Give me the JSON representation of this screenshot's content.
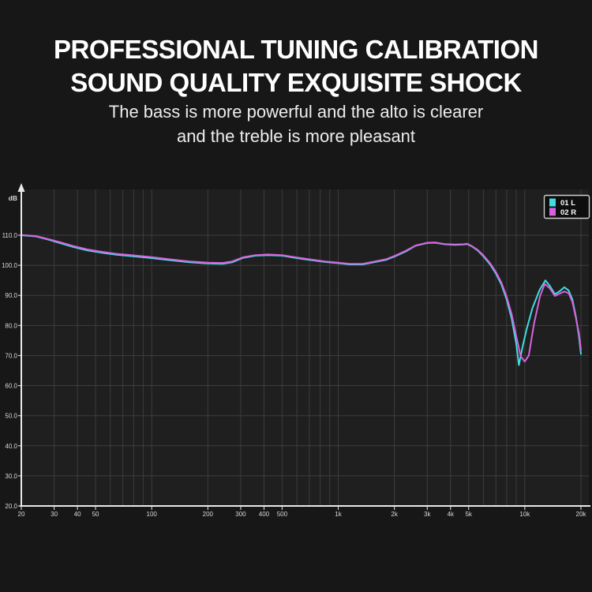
{
  "header": {
    "title_line1": "PROFESSIONAL TUNING CALIBRATION",
    "title_line2": "SOUND QUALITY EXQUISITE SHOCK",
    "subtitle_line1": "The bass is more powerful and the alto is clearer",
    "subtitle_line2": "and the treble is more pleasant"
  },
  "colors": {
    "page_bg": "#171717",
    "plot_bg": "#1f1f1f",
    "grid": "#3d3d3d",
    "axis": "#e8e8e8",
    "tick_text": "#d9d9d9",
    "title_text": "#ffffff",
    "subtitle_text": "#ededed",
    "legend_bg": "#0e0e0e",
    "legend_border": "#cfcfcf",
    "legend_text": "#ffffff",
    "series_left": "#3fdde2",
    "series_right": "#d763dc"
  },
  "chart_data": {
    "type": "line",
    "title": "",
    "xlabel": "",
    "ylabel": "dB",
    "x_scale": "log",
    "x_range": [
      20,
      20000
    ],
    "y_range_labeled": [
      20,
      110
    ],
    "grid": true,
    "legend_position": "top-right",
    "x_gridlines": [
      20,
      30,
      40,
      50,
      60,
      70,
      80,
      90,
      100,
      200,
      300,
      400,
      500,
      600,
      700,
      800,
      900,
      1000,
      2000,
      3000,
      4000,
      5000,
      6000,
      7000,
      8000,
      9000,
      10000,
      20000
    ],
    "x_tick_labels": [
      {
        "f": 20,
        "label": "20"
      },
      {
        "f": 30,
        "label": "30"
      },
      {
        "f": 40,
        "label": "40"
      },
      {
        "f": 50,
        "label": "50"
      },
      {
        "f": 100,
        "label": "100"
      },
      {
        "f": 200,
        "label": "200"
      },
      {
        "f": 300,
        "label": "300"
      },
      {
        "f": 400,
        "label": "400"
      },
      {
        "f": 500,
        "label": "500"
      },
      {
        "f": 1000,
        "label": "1k"
      },
      {
        "f": 2000,
        "label": "2k"
      },
      {
        "f": 3000,
        "label": "3k"
      },
      {
        "f": 4000,
        "label": "4k"
      },
      {
        "f": 5000,
        "label": "5k"
      },
      {
        "f": 10000,
        "label": "10k"
      },
      {
        "f": 20000,
        "label": "20k"
      }
    ],
    "y_ticks": [
      {
        "v": 110,
        "label": "110.0"
      },
      {
        "v": 100,
        "label": "100.0"
      },
      {
        "v": 90,
        "label": "90.0"
      },
      {
        "v": 80,
        "label": "80.0"
      },
      {
        "v": 70,
        "label": "70.0"
      },
      {
        "v": 60,
        "label": "60.0"
      },
      {
        "v": 50,
        "label": "50.0"
      },
      {
        "v": 40,
        "label": "40.0"
      },
      {
        "v": 30,
        "label": "30.0"
      },
      {
        "v": 20,
        "label": "20.0"
      }
    ],
    "legend": [
      {
        "name": "01 L",
        "color": "#3fdde2"
      },
      {
        "name": "02 R",
        "color": "#d763dc"
      }
    ],
    "series": [
      {
        "name": "01 L",
        "color": "#3fdde2",
        "points": [
          [
            20,
            110.0
          ],
          [
            24,
            109.6
          ],
          [
            28,
            108.5
          ],
          [
            33,
            107.2
          ],
          [
            38,
            106.1
          ],
          [
            45,
            105.0
          ],
          [
            55,
            104.1
          ],
          [
            65,
            103.5
          ],
          [
            80,
            103.0
          ],
          [
            100,
            102.4
          ],
          [
            125,
            101.7
          ],
          [
            160,
            101.0
          ],
          [
            200,
            100.6
          ],
          [
            240,
            100.5
          ],
          [
            270,
            101.0
          ],
          [
            310,
            102.5
          ],
          [
            360,
            103.2
          ],
          [
            420,
            103.4
          ],
          [
            500,
            103.2
          ],
          [
            600,
            102.4
          ],
          [
            700,
            101.8
          ],
          [
            850,
            101.1
          ],
          [
            1000,
            100.7
          ],
          [
            1150,
            100.3
          ],
          [
            1350,
            100.3
          ],
          [
            1550,
            101.0
          ],
          [
            1800,
            101.8
          ],
          [
            2000,
            102.9
          ],
          [
            2300,
            104.6
          ],
          [
            2600,
            106.5
          ],
          [
            3000,
            107.4
          ],
          [
            3300,
            107.5
          ],
          [
            3700,
            107.0
          ],
          [
            4200,
            106.8
          ],
          [
            4700,
            106.9
          ],
          [
            4900,
            107.1
          ],
          [
            5200,
            106.3
          ],
          [
            5600,
            104.9
          ],
          [
            6000,
            103.0
          ],
          [
            6500,
            100.4
          ],
          [
            7000,
            97.3
          ],
          [
            7500,
            93.6
          ],
          [
            8000,
            88.6
          ],
          [
            8500,
            82.3
          ],
          [
            9000,
            74.0
          ],
          [
            9300,
            66.8
          ],
          [
            9700,
            72.5
          ],
          [
            10200,
            78.5
          ],
          [
            11000,
            85.8
          ],
          [
            12000,
            91.8
          ],
          [
            12900,
            95.0
          ],
          [
            13600,
            93.2
          ],
          [
            14500,
            90.4
          ],
          [
            15400,
            91.4
          ],
          [
            16300,
            92.7
          ],
          [
            17200,
            91.6
          ],
          [
            18000,
            88.6
          ],
          [
            18800,
            83.0
          ],
          [
            19500,
            76.5
          ],
          [
            20000,
            70.5
          ]
        ]
      },
      {
        "name": "02 R",
        "color": "#d763dc",
        "points": [
          [
            20,
            110.1
          ],
          [
            24,
            109.7
          ],
          [
            28,
            108.7
          ],
          [
            33,
            107.5
          ],
          [
            38,
            106.4
          ],
          [
            45,
            105.3
          ],
          [
            55,
            104.4
          ],
          [
            65,
            103.8
          ],
          [
            80,
            103.3
          ],
          [
            100,
            102.7
          ],
          [
            125,
            102.0
          ],
          [
            160,
            101.3
          ],
          [
            200,
            100.9
          ],
          [
            240,
            100.8
          ],
          [
            270,
            101.3
          ],
          [
            310,
            102.7
          ],
          [
            360,
            103.4
          ],
          [
            420,
            103.6
          ],
          [
            500,
            103.4
          ],
          [
            600,
            102.6
          ],
          [
            700,
            102.0
          ],
          [
            850,
            101.3
          ],
          [
            1000,
            100.9
          ],
          [
            1150,
            100.5
          ],
          [
            1350,
            100.5
          ],
          [
            1550,
            101.2
          ],
          [
            1800,
            102.0
          ],
          [
            2000,
            103.1
          ],
          [
            2300,
            104.8
          ],
          [
            2600,
            106.6
          ],
          [
            3000,
            107.5
          ],
          [
            3300,
            107.6
          ],
          [
            3700,
            107.1
          ],
          [
            4200,
            106.9
          ],
          [
            4700,
            107.0
          ],
          [
            4900,
            107.2
          ],
          [
            5200,
            106.4
          ],
          [
            5600,
            105.1
          ],
          [
            6000,
            103.3
          ],
          [
            6500,
            100.8
          ],
          [
            7000,
            97.8
          ],
          [
            7500,
            94.2
          ],
          [
            8000,
            89.5
          ],
          [
            8500,
            83.8
          ],
          [
            9000,
            76.5
          ],
          [
            9500,
            69.8
          ],
          [
            10000,
            68.0
          ],
          [
            10500,
            70.0
          ],
          [
            11200,
            80.5
          ],
          [
            12100,
            90.0
          ],
          [
            12800,
            93.8
          ],
          [
            13600,
            92.4
          ],
          [
            14500,
            89.8
          ],
          [
            15400,
            90.6
          ],
          [
            16300,
            91.3
          ],
          [
            17200,
            90.7
          ],
          [
            18000,
            87.8
          ],
          [
            18800,
            82.5
          ],
          [
            19500,
            77.5
          ],
          [
            20000,
            72.0
          ]
        ]
      }
    ]
  }
}
